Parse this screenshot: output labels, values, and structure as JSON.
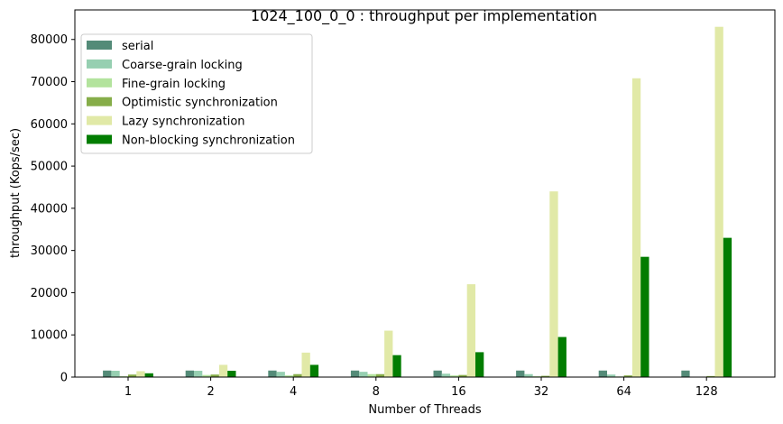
{
  "chart_data": {
    "type": "bar",
    "title": "1024_100_0_0 : throughput per implementation",
    "xlabel": "Number of Threads",
    "ylabel": "throughput (Kops/sec)",
    "categories": [
      "1",
      "2",
      "4",
      "8",
      "16",
      "32",
      "64",
      "128"
    ],
    "ylim": [
      0,
      87000
    ],
    "yticks": [
      0,
      10000,
      20000,
      30000,
      40000,
      50000,
      60000,
      70000,
      80000
    ],
    "grid": false,
    "legend_position": "top-left",
    "series": [
      {
        "name": "serial",
        "color": "#548b78",
        "values": [
          1550,
          1550,
          1550,
          1550,
          1550,
          1550,
          1550,
          1550
        ]
      },
      {
        "name": "Coarse-grain locking",
        "color": "#96cfb1",
        "values": [
          1500,
          1500,
          1250,
          1250,
          800,
          700,
          600,
          100
        ]
      },
      {
        "name": "Fine-grain locking",
        "color": "#b3e39d",
        "values": [
          200,
          500,
          400,
          700,
          400,
          200,
          150,
          100
        ]
      },
      {
        "name": "Optimistic synchronization",
        "color": "#86ad49",
        "values": [
          600,
          600,
          700,
          700,
          500,
          300,
          400,
          250
        ]
      },
      {
        "name": "Lazy synchronization",
        "color": "#e1e9a7",
        "values": [
          1400,
          2900,
          5800,
          11000,
          22000,
          44000,
          70800,
          83000
        ]
      },
      {
        "name": "Non-blocking synchronization",
        "color": "#027d01",
        "values": [
          900,
          1500,
          2900,
          5200,
          5900,
          9500,
          28500,
          33000
        ]
      }
    ]
  }
}
